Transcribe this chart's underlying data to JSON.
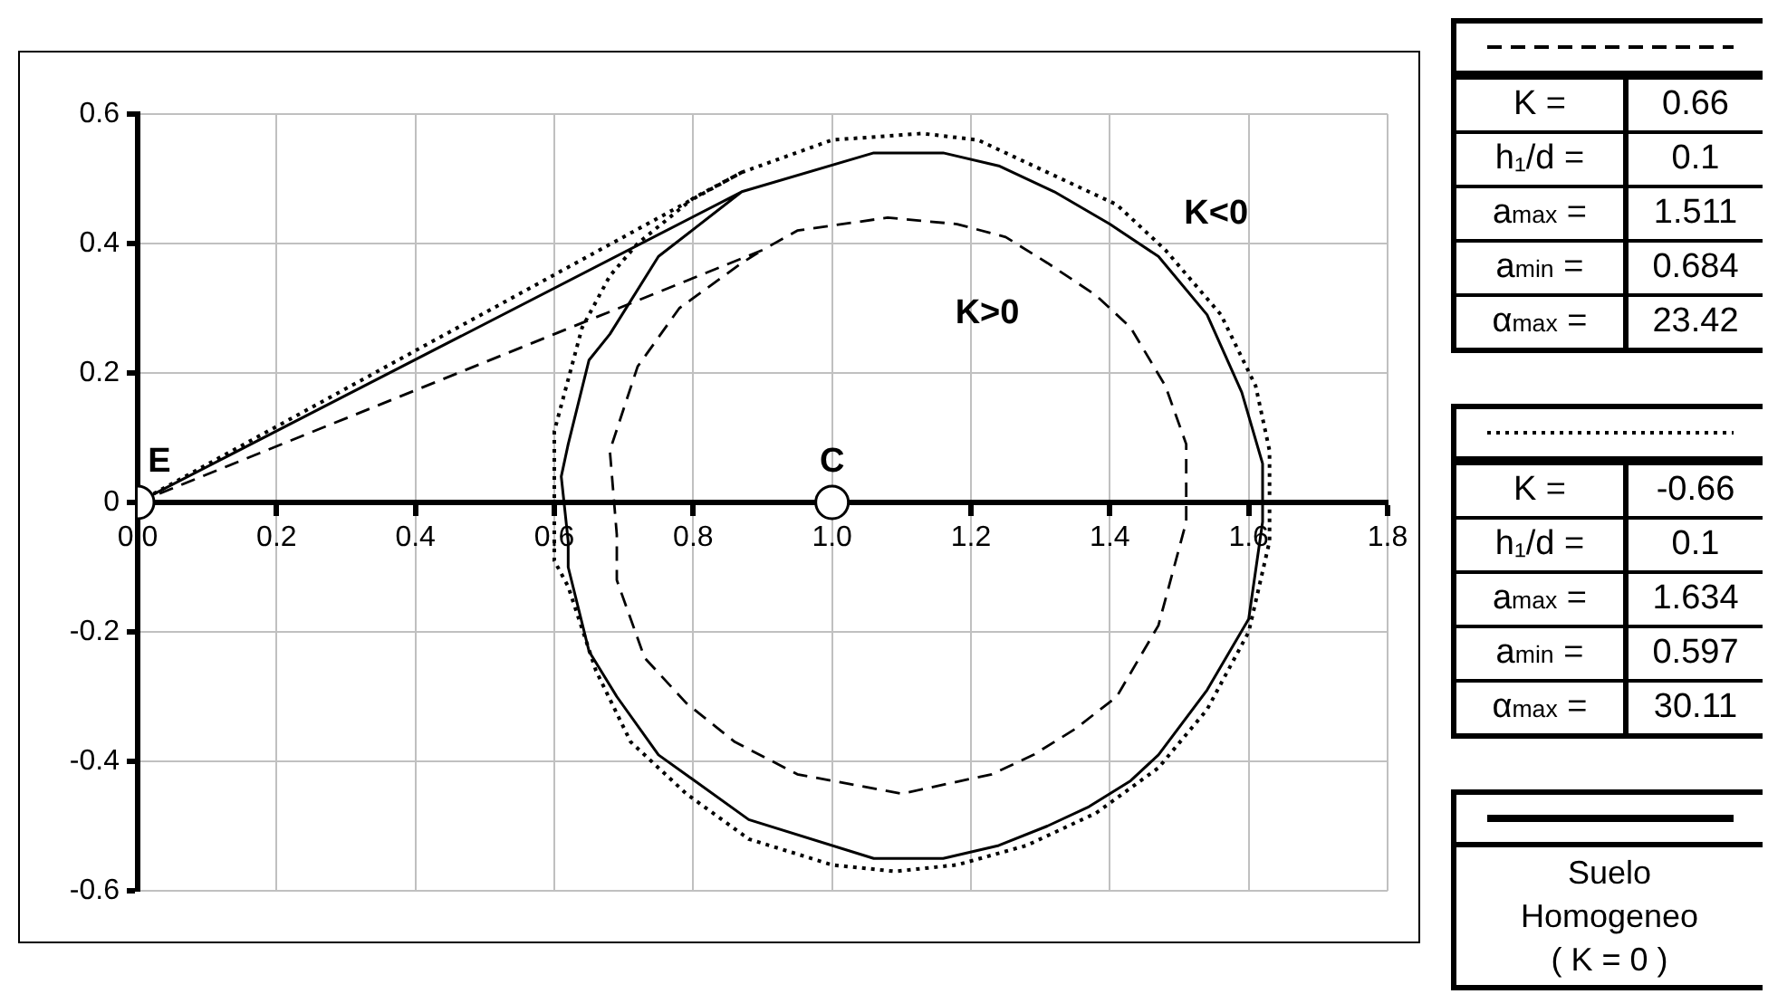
{
  "chart_data": {
    "type": "line",
    "xlim": [
      0,
      1.8
    ],
    "ylim": [
      -0.6,
      0.6
    ],
    "xticks": [
      {
        "value": 0,
        "label": "0.0"
      },
      0.2,
      0.4,
      0.6,
      0.8,
      {
        "value": 1,
        "label": "1.0"
      },
      1.2,
      1.4,
      1.6,
      1.8
    ],
    "yticks": [
      -0.6,
      -0.4,
      -0.2,
      0,
      0.2,
      0.4,
      0.6
    ],
    "grid": true,
    "legend": "right",
    "marker": "none",
    "series": [
      {
        "name": "K>0",
        "color": "#000000",
        "line_style": "dashed",
        "x": [
          0,
          0.9,
          0.95,
          1.08,
          1.18,
          1.25,
          1.31,
          1.38,
          1.43,
          1.48,
          1.51,
          1.51,
          1.51,
          1.47,
          1.41,
          1.35,
          1.29,
          1.23,
          1.1,
          0.95,
          0.86,
          0.79,
          0.73,
          0.69,
          0.69,
          0.68,
          0.72,
          0.78,
          0.87,
          0.9
        ],
        "values": [
          0,
          0.39,
          0.42,
          0.44,
          0.43,
          0.41,
          0.37,
          0.32,
          0.27,
          0.18,
          0.09,
          -0.01,
          -0.03,
          -0.19,
          -0.3,
          -0.35,
          -0.39,
          -0.42,
          -0.45,
          -0.42,
          -0.37,
          -0.31,
          -0.24,
          -0.12,
          -0.05,
          0.08,
          0.21,
          0.3,
          0.37,
          0.39
        ]
      },
      {
        "name": "K<0",
        "color": "#000000",
        "line_style": "dotted",
        "x": [
          0,
          0.87,
          1.0,
          1.13,
          1.21,
          1.31,
          1.41,
          1.48,
          1.56,
          1.61,
          1.63,
          1.63,
          1.63,
          1.6,
          1.54,
          1.47,
          1.38,
          1.28,
          1.18,
          1.09,
          1.0,
          0.88,
          0.79,
          0.71,
          0.66,
          0.62,
          0.6,
          0.6,
          0.6,
          0.64,
          0.68,
          0.72,
          0.8,
          0.87
        ],
        "values": [
          0,
          0.51,
          0.56,
          0.57,
          0.56,
          0.51,
          0.46,
          0.39,
          0.29,
          0.18,
          0.08,
          -0.02,
          -0.06,
          -0.2,
          -0.32,
          -0.41,
          -0.48,
          -0.53,
          -0.56,
          -0.57,
          -0.56,
          -0.52,
          -0.45,
          -0.37,
          -0.26,
          -0.13,
          -0.09,
          0,
          0.11,
          0.27,
          0.35,
          0.4,
          0.47,
          0.51
        ]
      },
      {
        "color": "#000000",
        "line_style": "solid",
        "x": [
          0,
          0.87,
          1.06,
          1.16,
          1.24,
          1.32,
          1.4,
          1.47,
          1.54,
          1.59,
          1.62,
          1.62,
          1.6,
          1.54,
          1.47,
          1.43,
          1.37,
          1.31,
          1.24,
          1.16,
          1.06,
          0.88,
          0.75,
          0.69,
          0.65,
          0.62,
          0.62,
          0.61,
          0.62,
          0.65,
          0.68,
          0.75,
          0.87
        ],
        "values": [
          0,
          0.48,
          0.54,
          0.54,
          0.52,
          0.48,
          0.43,
          0.38,
          0.29,
          0.17,
          0.06,
          -0.03,
          -0.18,
          -0.29,
          -0.39,
          -0.43,
          -0.47,
          -0.5,
          -0.53,
          -0.55,
          -0.55,
          -0.49,
          -0.39,
          -0.3,
          -0.23,
          -0.1,
          -0.06,
          0.04,
          0.09,
          0.22,
          0.26,
          0.38,
          0.48
        ]
      },
      {
        "type": "scatter",
        "marker": "circle",
        "color": "#ffffff",
        "x": [
          0,
          1
        ],
        "values": [
          0,
          0
        ]
      }
    ],
    "annotations": [
      {
        "text": "E",
        "x": 0,
        "y": 0
      },
      {
        "text": "C",
        "x": 1,
        "y": 0
      },
      "K =",
      "0.66",
      "h₁/d =",
      "0.1",
      "a$_{max}$ =",
      "1.511",
      "a$_{min}$ =",
      "0.684",
      "α$_{max}$ =",
      "23.42",
      "K =",
      "-0.66",
      "h₁/d =",
      "0.1",
      "a$_{max}$ =",
      "1.634",
      "a$_{min}$ =",
      "0.597",
      "α$_{max}$ =",
      "30.11",
      "Suelo Homogeneo ( K = 0 )"
    ]
  }
}
